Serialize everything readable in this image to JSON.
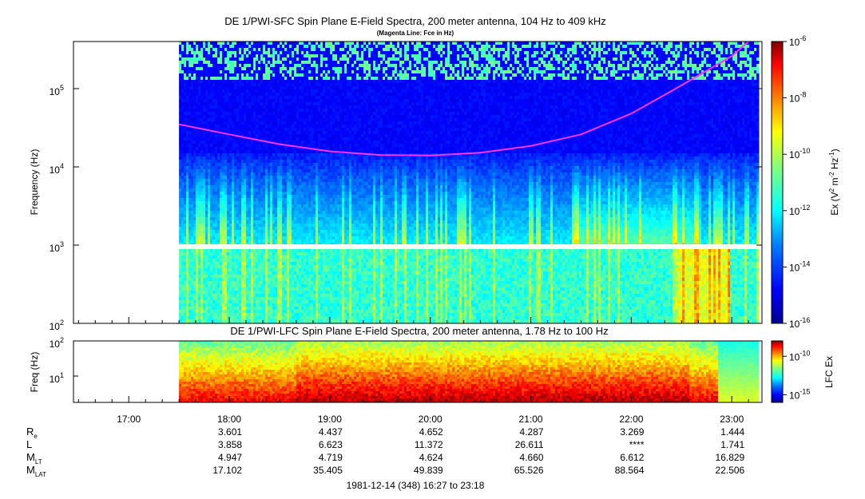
{
  "chart_data": [
    {
      "type": "heatmap",
      "title": "DE 1/PWI-SFC  Spin Plane E-Field Spectra, 200 meter antenna, 104 Hz to 409 kHz",
      "subtitle": "(Magenta Line: Fce in Hz)",
      "ylabel": "Frequency (Hz)",
      "y_scale": "log",
      "ylim": [
        100,
        400000
      ],
      "y_ticks": [
        {
          "base": "10",
          "exp": "2",
          "value": 100
        },
        {
          "base": "10",
          "exp": "3",
          "value": 1000
        },
        {
          "base": "10",
          "exp": "4",
          "value": 10000
        },
        {
          "base": "10",
          "exp": "5",
          "value": 100000
        }
      ],
      "data_start": "17:30",
      "data_end": "23:15",
      "band_boundary_hz": 1000,
      "colorbar": {
        "label_main": "Ex (V",
        "label_sup1": "2",
        "label_mid": " m",
        "label_sup2": "-2",
        "label_mid2": " Hz",
        "label_sup3": "-1",
        "label_end": ")",
        "scale": "log",
        "range": [
          1e-16,
          1e-06
        ],
        "ticks": [
          {
            "base": "10",
            "exp": "-6",
            "value": 1e-06
          },
          {
            "base": "10",
            "exp": "-8",
            "value": 1e-08
          },
          {
            "base": "10",
            "exp": "-10",
            "value": 1e-10
          },
          {
            "base": "10",
            "exp": "-12",
            "value": 1e-12
          },
          {
            "base": "10",
            "exp": "-14",
            "value": 1e-14
          },
          {
            "base": "10",
            "exp": "-16",
            "value": 1e-16
          }
        ],
        "colors": [
          "#00008f",
          "#0000ff",
          "#0080ff",
          "#00ffff",
          "#80ff80",
          "#ffff00",
          "#ff8000",
          "#ff0000",
          "#800000"
        ]
      },
      "fce_line": {
        "color": "#ff33ff",
        "points": [
          {
            "t": "17:30",
            "f": 35000
          },
          {
            "t": "18:00",
            "f": 26000
          },
          {
            "t": "18:30",
            "f": 19500
          },
          {
            "t": "19:00",
            "f": 15800
          },
          {
            "t": "19:30",
            "f": 14200
          },
          {
            "t": "20:00",
            "f": 14000
          },
          {
            "t": "20:30",
            "f": 15200
          },
          {
            "t": "21:00",
            "f": 18500
          },
          {
            "t": "21:30",
            "f": 26000
          },
          {
            "t": "22:00",
            "f": 48000
          },
          {
            "t": "22:30",
            "f": 110000
          },
          {
            "t": "23:00",
            "f": 260000
          },
          {
            "t": "23:10",
            "f": 400000
          }
        ]
      }
    },
    {
      "type": "heatmap",
      "title": "DE 1/PWI-LFC  Spin Plane E-Field Spectra, 200 meter antenna, 1.78 Hz to 100 Hz",
      "ylabel": "Freq (Hz)",
      "y_scale": "log",
      "ylim": [
        1.78,
        100
      ],
      "y_ticks": [
        {
          "base": "10",
          "exp": "1",
          "value": 10
        },
        {
          "base": "10",
          "exp": "2",
          "value": 100
        }
      ],
      "data_start": "17:30",
      "data_end": "23:15",
      "colorbar": {
        "label": "LFC Ex",
        "scale": "log",
        "ticks": [
          {
            "base": "10",
            "exp": "-10",
            "value": 1e-10
          },
          {
            "base": "10",
            "exp": "-15",
            "value": 1e-15
          }
        ]
      }
    }
  ],
  "time_axis": {
    "labels": [
      "17:00",
      "18:00",
      "19:00",
      "20:00",
      "21:00",
      "22:00",
      "23:00"
    ],
    "start": "16:27",
    "end": "23:18"
  },
  "ephemeris": {
    "rows": [
      {
        "name": "R",
        "sub": "e",
        "values": [
          "3.601",
          "4.437",
          "4.652",
          "4.287",
          "3.269",
          "1.444"
        ]
      },
      {
        "name": "L",
        "sub": "",
        "values": [
          "3.858",
          "6.623",
          "11.372",
          "26.611",
          "****",
          "1.741"
        ]
      },
      {
        "name": "M",
        "sub": "LT",
        "values": [
          "4.947",
          "4.719",
          "4.624",
          "4.660",
          "6.612",
          "16.829"
        ]
      },
      {
        "name": "M",
        "sub": "LAT",
        "values": [
          "17.102",
          "35.405",
          "49.839",
          "65.526",
          "88.564",
          "22.506"
        ]
      }
    ]
  },
  "footer": "1981-12-14 (348) 16:27 to 23:18"
}
